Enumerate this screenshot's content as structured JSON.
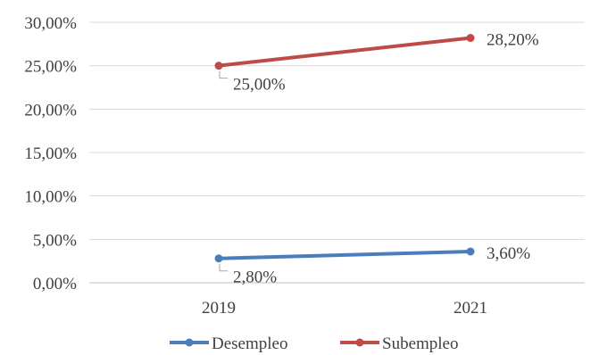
{
  "chart_data": {
    "type": "line",
    "title": "",
    "xlabel": "",
    "ylabel": "",
    "x": [
      "2019",
      "2021"
    ],
    "ylim": [
      0,
      30
    ],
    "yticks": [
      0,
      5,
      10,
      15,
      20,
      25,
      30
    ],
    "ytick_labels": [
      "0,00%",
      "5,00%",
      "10,00%",
      "15,00%",
      "20,00%",
      "25,00%",
      "30,00%"
    ],
    "grid": true,
    "legend": "bottom",
    "series": [
      {
        "name": "Desempleo",
        "color": "#4a7ebb",
        "values": [
          2.8,
          3.6
        ],
        "labels": [
          "2,80%",
          "3,60%"
        ]
      },
      {
        "name": "Subempleo",
        "color": "#be4b48",
        "values": [
          25.0,
          28.2
        ],
        "labels": [
          "25,00%",
          "28,20%"
        ]
      }
    ]
  }
}
